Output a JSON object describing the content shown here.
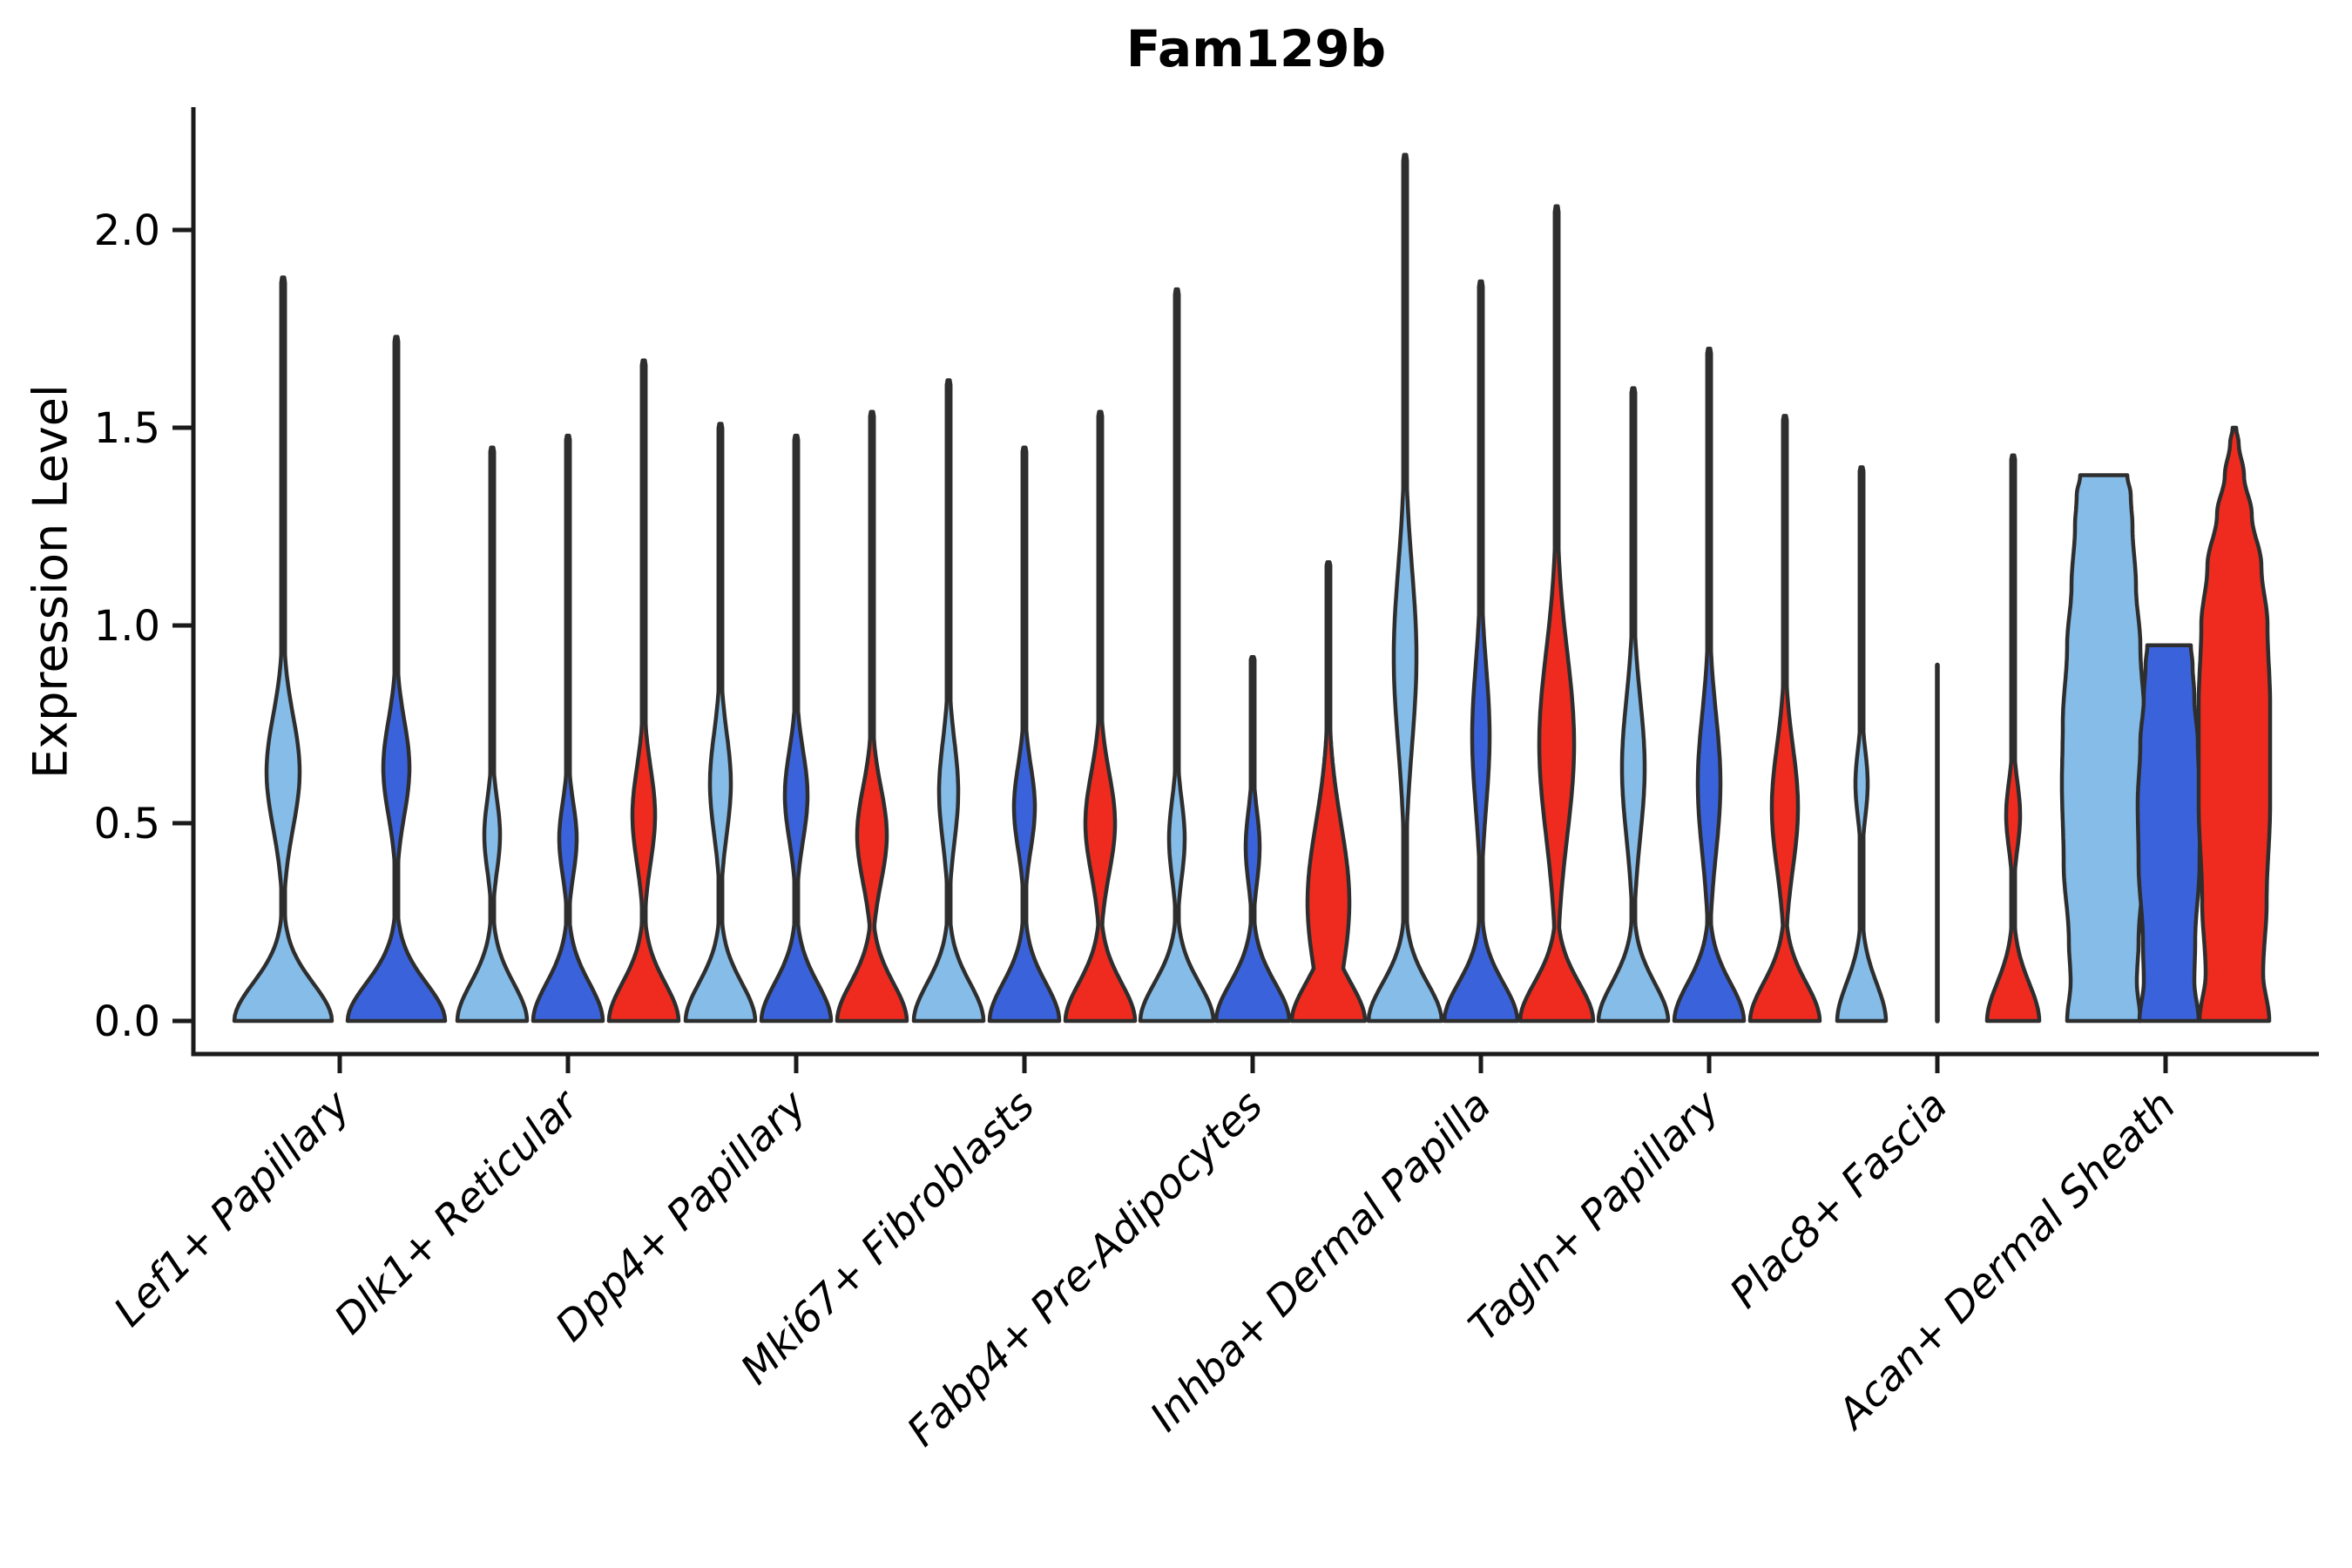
{
  "chart_data": {
    "type": "violin",
    "title": "Fam129b",
    "ylabel": "Expression Level",
    "ytick_labels": [
      "0.0",
      "0.5",
      "1.0",
      "1.5",
      "2.0"
    ],
    "ytick_values": [
      0,
      0.5,
      1.0,
      1.5,
      2.0
    ],
    "ylim": [
      0,
      2.31
    ],
    "grid": false,
    "legend_position": "none",
    "xlabel_style": "italic, rotated 45deg",
    "edge_color": "#2e2e2e",
    "background": "#ffffff",
    "split_colors": [
      {
        "name": "light-blue",
        "hex": "#85BCE8"
      },
      {
        "name": "dark-blue",
        "hex": "#3A63DB"
      },
      {
        "name": "red",
        "hex": "#EF2B1F"
      }
    ],
    "categories": [
      "Lef1+ Papillary",
      "Dlk1+ Reticular",
      "Dpp4+ Papillary",
      "Mki67+ Fibroblasts",
      "Fabp4+ Pre-Adipocytes",
      "Inhba+ Dermal Papilla",
      "Tagln+ Papillary",
      "Plac8+ Fascia",
      "Acan+ Dermal Sheath"
    ],
    "groups": [
      {
        "category": "Lef1+ Papillary",
        "violins": [
          {
            "color": "light-blue",
            "kind": "kde",
            "max": 1.88,
            "offset": -65,
            "base": 56,
            "bulges": [
              {
                "c": 0.63,
                "s": 0.2,
                "w": 19
              }
            ]
          },
          {
            "color": "dark-blue",
            "kind": "kde",
            "max": 1.73,
            "offset": 65,
            "base": 56,
            "bulges": [
              {
                "c": 0.64,
                "s": 0.17,
                "w": 15
              }
            ]
          }
        ]
      },
      {
        "category": "Dlk1+ Reticular",
        "violins": [
          {
            "color": "light-blue",
            "kind": "kde",
            "max": 1.45,
            "offset": -87,
            "base": 40,
            "bulges": [
              {
                "c": 0.47,
                "s": 0.13,
                "w": 9
              }
            ]
          },
          {
            "color": "dark-blue",
            "kind": "kde",
            "max": 1.48,
            "offset": 0,
            "base": 40,
            "bulges": [
              {
                "c": 0.46,
                "s": 0.13,
                "w": 10
              }
            ]
          },
          {
            "color": "red",
            "kind": "kde",
            "max": 1.67,
            "offset": 87,
            "base": 40,
            "bulges": [
              {
                "c": 0.52,
                "s": 0.17,
                "w": 13
              }
            ]
          }
        ]
      },
      {
        "category": "Dpp4+ Papillary",
        "violins": [
          {
            "color": "light-blue",
            "kind": "kde",
            "max": 1.51,
            "offset": -87,
            "base": 40,
            "bulges": [
              {
                "c": 0.6,
                "s": 0.18,
                "w": 12
              }
            ]
          },
          {
            "color": "dark-blue",
            "kind": "kde",
            "max": 1.48,
            "offset": 0,
            "base": 40,
            "bulges": [
              {
                "c": 0.57,
                "s": 0.16,
                "w": 13
              }
            ]
          },
          {
            "color": "red",
            "kind": "kde",
            "max": 1.54,
            "offset": 87,
            "base": 40,
            "bulges": [
              {
                "c": 0.47,
                "s": 0.17,
                "w": 17
              }
            ]
          }
        ]
      },
      {
        "category": "Mki67+ Fibroblasts",
        "violins": [
          {
            "color": "light-blue",
            "kind": "kde",
            "max": 1.62,
            "offset": -87,
            "base": 40,
            "bulges": [
              {
                "c": 0.58,
                "s": 0.18,
                "w": 11
              }
            ]
          },
          {
            "color": "dark-blue",
            "kind": "kde",
            "max": 1.45,
            "offset": 0,
            "base": 40,
            "bulges": [
              {
                "c": 0.54,
                "s": 0.15,
                "w": 12
              }
            ]
          },
          {
            "color": "red",
            "kind": "kde",
            "max": 1.54,
            "offset": 87,
            "base": 40,
            "bulges": [
              {
                "c": 0.5,
                "s": 0.18,
                "w": 17
              }
            ]
          }
        ]
      },
      {
        "category": "Fabp4+ Pre-Adipocytes",
        "violins": [
          {
            "color": "light-blue",
            "kind": "kde",
            "max": 1.85,
            "offset": -87,
            "base": 42,
            "bulges": [
              {
                "c": 0.46,
                "s": 0.14,
                "w": 9
              }
            ]
          },
          {
            "color": "dark-blue",
            "kind": "kde",
            "max": 0.92,
            "offset": 0,
            "base": 42,
            "bulges": [
              {
                "c": 0.44,
                "s": 0.13,
                "w": 8
              }
            ]
          },
          {
            "color": "red",
            "kind": "kde",
            "max": 1.16,
            "offset": 87,
            "base": 42,
            "bulges": [
              {
                "c": 0.3,
                "s": 0.28,
                "w": 24
              }
            ]
          }
        ]
      },
      {
        "category": "Inhba+ Dermal Papilla",
        "violins": [
          {
            "color": "light-blue",
            "kind": "kde",
            "max": 2.19,
            "offset": -87,
            "base": 42,
            "bulges": [
              {
                "c": 0.92,
                "s": 0.32,
                "w": 13
              }
            ]
          },
          {
            "color": "dark-blue",
            "kind": "kde",
            "max": 1.87,
            "offset": 0,
            "base": 42,
            "bulges": [
              {
                "c": 0.72,
                "s": 0.25,
                "w": 10
              }
            ]
          },
          {
            "color": "red",
            "kind": "kde",
            "max": 2.06,
            "offset": 87,
            "base": 42,
            "bulges": [
              {
                "c": 0.7,
                "s": 0.33,
                "w": 20
              }
            ]
          }
        ]
      },
      {
        "category": "Tagln+ Papillary",
        "violins": [
          {
            "color": "light-blue",
            "kind": "kde",
            "max": 1.6,
            "offset": -87,
            "base": 40,
            "bulges": [
              {
                "c": 0.64,
                "s": 0.25,
                "w": 13
              }
            ]
          },
          {
            "color": "dark-blue",
            "kind": "kde",
            "max": 1.7,
            "offset": 0,
            "base": 40,
            "bulges": [
              {
                "c": 0.6,
                "s": 0.25,
                "w": 13
              }
            ]
          },
          {
            "color": "red",
            "kind": "kde",
            "max": 1.53,
            "offset": 87,
            "base": 40,
            "bulges": [
              {
                "c": 0.54,
                "s": 0.22,
                "w": 15
              }
            ]
          }
        ]
      },
      {
        "category": "Plac8+ Fascia",
        "violins": [
          {
            "color": "light-blue",
            "kind": "kde",
            "max": 1.4,
            "offset": -87,
            "base": 28,
            "bulges": [
              {
                "c": 0.6,
                "s": 0.12,
                "w": 7
              }
            ]
          },
          {
            "color": "dark-blue",
            "kind": "stick",
            "max": 0.9,
            "offset": 0
          },
          {
            "color": "red",
            "kind": "kde",
            "max": 1.43,
            "offset": 87,
            "base": 30,
            "bulges": [
              {
                "c": 0.52,
                "s": 0.12,
                "w": 8
              }
            ]
          }
        ]
      },
      {
        "category": "Acan+ Dermal Sheath",
        "violins": [
          {
            "color": "light-blue",
            "kind": "profile",
            "max": 1.38,
            "offset": -71,
            "cap": "flat",
            "points": [
              [
                0,
                42
              ],
              [
                0.1,
                38
              ],
              [
                0.2,
                40
              ],
              [
                0.4,
                46
              ],
              [
                0.6,
                48
              ],
              [
                0.75,
                47
              ],
              [
                0.95,
                42
              ],
              [
                1.1,
                37
              ],
              [
                1.25,
                33
              ],
              [
                1.33,
                31
              ],
              [
                1.38,
                27
              ]
            ]
          },
          {
            "color": "dark-blue",
            "kind": "profile",
            "max": 0.95,
            "offset": 4,
            "cap": "flat",
            "points": [
              [
                0,
                34
              ],
              [
                0.1,
                29
              ],
              [
                0.2,
                30
              ],
              [
                0.4,
                35
              ],
              [
                0.55,
                36
              ],
              [
                0.7,
                33
              ],
              [
                0.82,
                29
              ],
              [
                0.9,
                27
              ],
              [
                0.95,
                25
              ]
            ]
          },
          {
            "color": "red",
            "kind": "profile",
            "max": 1.5,
            "offset": 79,
            "cap": "point",
            "points": [
              [
                0,
                40
              ],
              [
                0.12,
                33
              ],
              [
                0.3,
                37
              ],
              [
                0.55,
                41
              ],
              [
                0.8,
                41
              ],
              [
                1.0,
                38
              ],
              [
                1.15,
                31
              ],
              [
                1.28,
                20
              ],
              [
                1.38,
                11
              ],
              [
                1.46,
                5
              ],
              [
                1.5,
                2
              ]
            ]
          }
        ]
      }
    ]
  }
}
